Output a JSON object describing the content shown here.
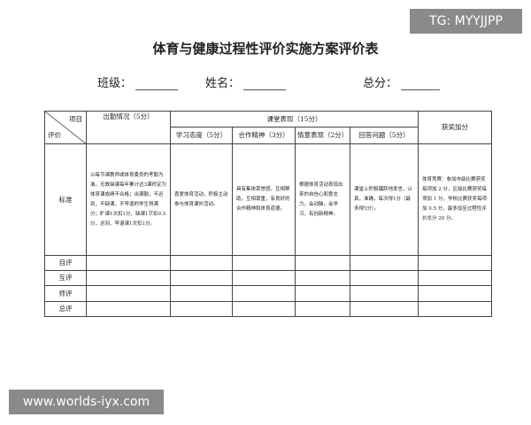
{
  "title": "体育与健康过程性评价实施方案评价表",
  "fields": {
    "class": "班级：",
    "name": "姓名：",
    "total": "总分："
  },
  "table": {
    "corner_top": "项目",
    "corner_bottom": "评价",
    "attendance": "出勤情况（5分）",
    "classroom": "课堂表现（15分）",
    "sub": [
      "学习态度（5分）",
      "合作精神（3分）",
      "情意表现（2分）",
      "回答问题（5分）"
    ],
    "award": "获奖加分",
    "standard_label": "标准",
    "standards": [
      "以每节课教师或体育委员的考勤为准。无故缺课每年累计达3课时定为体育课成绩不合格；出满勤，不迟到，不缺课，不早退的学生得满分；旷课1次扣1分，缺课1节扣0.5分，迟到、早退课1次扣1分。",
      "喜爱体育活动，积极主动参与体育课外活动。",
      "具有集体荣誉感，互相帮助，互相尊重，有良好的合作精神和体育道德。",
      "根据体育活动表现出来的自信心和意志力，会动脑，会学习，有创新精神。",
      "课堂上积极踊跃地发言，认真，准确，每次得1分（最多得5分）。",
      "体育竞赛：参加市级比赛获奖每项加 2 分，区级比赛获奖每项加 1 分，学校比赛获奖每项加 0.5 分，最多加至过程性评价总分 20 分。"
    ],
    "rows": [
      "自评",
      "互评",
      "师评",
      "总评"
    ]
  },
  "watermarks": {
    "top": "TG: MYYJJPP",
    "bottom": "www.worlds-iyx.com"
  }
}
